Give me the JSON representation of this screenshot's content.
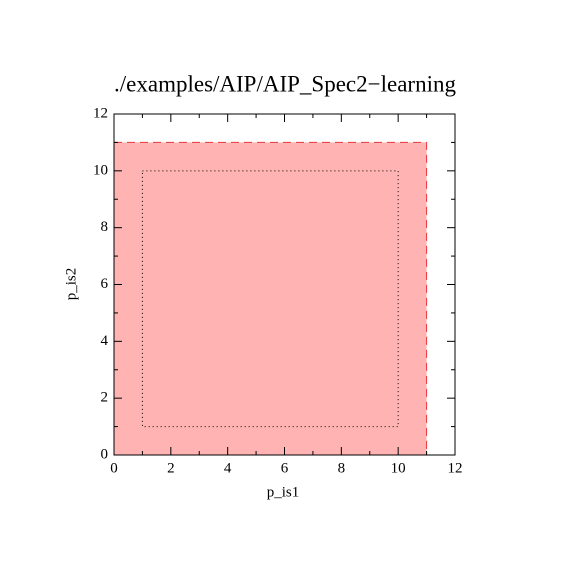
{
  "chart_data": {
    "type": "region",
    "title": "./examples/AIP/AIP_Spec2−learning",
    "x_label": "p_is1",
    "y_label": "p_is2",
    "xlim": [
      0,
      12
    ],
    "ylim": [
      0,
      12
    ],
    "xticks": [
      0,
      2,
      4,
      6,
      8,
      10,
      12
    ],
    "yticks": [
      0,
      2,
      4,
      6,
      8,
      10,
      12
    ],
    "regions": [
      {
        "x": [
          0,
          11
        ],
        "y": [
          0,
          11
        ],
        "fill": "#ffb3b3",
        "edge": "#e8383d",
        "line_style": "dashed"
      },
      {
        "x": [
          1,
          10
        ],
        "y": [
          1,
          10
        ],
        "fill": "none",
        "edge": "#000000",
        "line_style": "dotted"
      }
    ]
  }
}
